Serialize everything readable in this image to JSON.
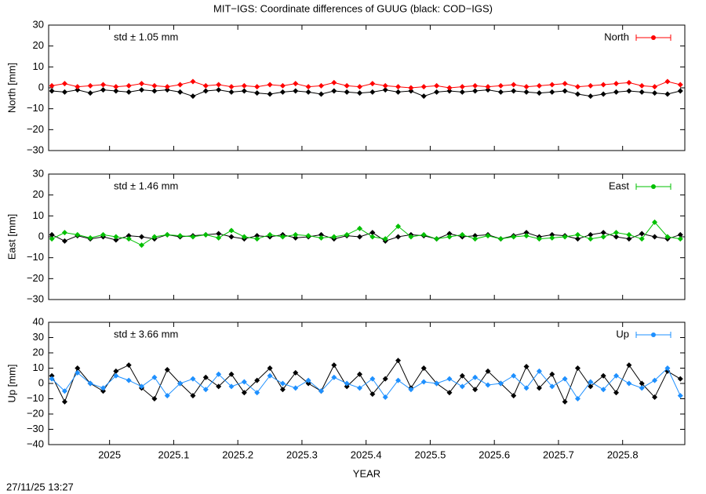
{
  "title": "MIT−IGS: Coordinate differences of GUUG (black: COD−IGS)",
  "timestamp": "27/11/25 13:27",
  "chart_data": [
    {
      "type": "line",
      "ylabel": "North [mm]",
      "annotation": "std ± 1.05 mm",
      "x": [
        2024.91,
        2024.93,
        2024.95,
        2024.97,
        2024.99,
        2025.01,
        2025.03,
        2025.05,
        2025.07,
        2025.09,
        2025.11,
        2025.13,
        2025.15,
        2025.17,
        2025.19,
        2025.21,
        2025.23,
        2025.25,
        2025.27,
        2025.29,
        2025.31,
        2025.33,
        2025.35,
        2025.37,
        2025.39,
        2025.41,
        2025.43,
        2025.45,
        2025.47,
        2025.49,
        2025.51,
        2025.53,
        2025.55,
        2025.57,
        2025.59,
        2025.61,
        2025.63,
        2025.65,
        2025.67,
        2025.69,
        2025.71,
        2025.73,
        2025.75,
        2025.77,
        2025.79,
        2025.81,
        2025.83,
        2025.85,
        2025.87,
        2025.89
      ],
      "xlim": [
        2024.905,
        2025.897
      ],
      "xticks": [
        2025,
        2025.1,
        2025.2,
        2025.3,
        2025.4,
        2025.5,
        2025.6,
        2025.7,
        2025.8
      ],
      "ylim": [
        -30,
        30
      ],
      "yticks": [
        {
          "value": -30,
          "label": "−30"
        },
        {
          "value": -20,
          "label": "−20"
        },
        {
          "value": -10,
          "label": "−10"
        },
        0,
        10,
        20,
        30
      ],
      "series": [
        {
          "color": "#000000",
          "values": [
            -1.5,
            -2,
            -1,
            -2.5,
            -1,
            -1.5,
            -2,
            -1,
            -1.5,
            -1,
            -2,
            -4,
            -1.5,
            -1,
            -2,
            -1.5,
            -2.5,
            -3,
            -2,
            -1.5,
            -2,
            -3,
            -1.5,
            -2,
            -2.5,
            -2,
            -1,
            -2,
            -1.5,
            -4,
            -2,
            -1.5,
            -2,
            -1.5,
            -1,
            -2,
            -1.5,
            -2,
            -2.5,
            -2,
            -1.5,
            -3,
            -4,
            -3,
            -2,
            -1.5,
            -2,
            -2.5,
            -3,
            -1.5
          ]
        },
        {
          "name": "North",
          "color": "#ff0000",
          "values": [
            1,
            2,
            0.5,
            1,
            1.5,
            0.5,
            1,
            2,
            1,
            0.5,
            1.5,
            3,
            1,
            1.5,
            0.5,
            1,
            0.5,
            1.5,
            1,
            2,
            0.5,
            1,
            2.5,
            1,
            0.5,
            2,
            1,
            0.5,
            0,
            0.5,
            1,
            0,
            0.5,
            1,
            0.5,
            1,
            1.5,
            0.5,
            1,
            1.5,
            2,
            0.5,
            1,
            1.5,
            2,
            2.5,
            1,
            0.5,
            3,
            1.5
          ]
        }
      ]
    },
    {
      "type": "line",
      "ylabel": "East [mm]",
      "annotation": "std ± 1.46 mm",
      "x": [
        2024.91,
        2024.93,
        2024.95,
        2024.97,
        2024.99,
        2025.01,
        2025.03,
        2025.05,
        2025.07,
        2025.09,
        2025.11,
        2025.13,
        2025.15,
        2025.17,
        2025.19,
        2025.21,
        2025.23,
        2025.25,
        2025.27,
        2025.29,
        2025.31,
        2025.33,
        2025.35,
        2025.37,
        2025.39,
        2025.41,
        2025.43,
        2025.45,
        2025.47,
        2025.49,
        2025.51,
        2025.53,
        2025.55,
        2025.57,
        2025.59,
        2025.61,
        2025.63,
        2025.65,
        2025.67,
        2025.69,
        2025.71,
        2025.73,
        2025.75,
        2025.77,
        2025.79,
        2025.81,
        2025.83,
        2025.85,
        2025.87,
        2025.89
      ],
      "xlim": [
        2024.905,
        2025.897
      ],
      "xticks": [
        2025,
        2025.1,
        2025.2,
        2025.3,
        2025.4,
        2025.5,
        2025.6,
        2025.7,
        2025.8
      ],
      "ylim": [
        -30,
        30
      ],
      "yticks": [
        {
          "value": -30,
          "label": "−30"
        },
        {
          "value": -20,
          "label": "−20"
        },
        {
          "value": -10,
          "label": "−10"
        },
        0,
        10,
        20,
        30
      ],
      "series": [
        {
          "color": "#000000",
          "values": [
            1,
            -2,
            0.5,
            -1,
            0,
            -1.5,
            0.5,
            0,
            -1,
            1,
            0,
            0.5,
            1,
            1.5,
            0,
            -1,
            0.5,
            0,
            1,
            -0.5,
            0,
            1,
            -1,
            0.5,
            0,
            2,
            -2,
            0,
            1,
            0.5,
            -1,
            1.5,
            0,
            0.5,
            1,
            -1,
            0.5,
            2,
            0,
            1,
            0.5,
            -1,
            1,
            2,
            0,
            -1,
            1.5,
            0,
            -1,
            1
          ]
        },
        {
          "name": "East",
          "color": "#00c000",
          "values": [
            -1,
            2,
            1,
            -0.5,
            1,
            0,
            -1,
            -4,
            0,
            1,
            0.5,
            0,
            1,
            -0.5,
            3,
            0,
            -1,
            1,
            0,
            1,
            0.5,
            -0.5,
            0,
            1,
            4,
            0,
            -1,
            5,
            0,
            1,
            -1,
            0,
            1,
            -1,
            0.5,
            -1,
            0,
            0.5,
            -1,
            -0.5,
            0,
            1,
            -1,
            0,
            2,
            1,
            -1,
            7,
            0,
            -1
          ]
        }
      ]
    },
    {
      "type": "line",
      "ylabel": "Up [mm]",
      "xlabel": "YEAR",
      "annotation": "std ± 3.66 mm",
      "x": [
        2024.91,
        2024.93,
        2024.95,
        2024.97,
        2024.99,
        2025.01,
        2025.03,
        2025.05,
        2025.07,
        2025.09,
        2025.11,
        2025.13,
        2025.15,
        2025.17,
        2025.19,
        2025.21,
        2025.23,
        2025.25,
        2025.27,
        2025.29,
        2025.31,
        2025.33,
        2025.35,
        2025.37,
        2025.39,
        2025.41,
        2025.43,
        2025.45,
        2025.47,
        2025.49,
        2025.51,
        2025.53,
        2025.55,
        2025.57,
        2025.59,
        2025.61,
        2025.63,
        2025.65,
        2025.67,
        2025.69,
        2025.71,
        2025.73,
        2025.75,
        2025.77,
        2025.79,
        2025.81,
        2025.83,
        2025.85,
        2025.87,
        2025.89
      ],
      "xlim": [
        2024.905,
        2025.897
      ],
      "xticks": [
        2025,
        2025.1,
        2025.2,
        2025.3,
        2025.4,
        2025.5,
        2025.6,
        2025.7,
        2025.8
      ],
      "ylim": [
        -40,
        40
      ],
      "yticks": [
        {
          "value": -40,
          "label": "−40"
        },
        {
          "value": -30,
          "label": "−30"
        },
        {
          "value": -20,
          "label": "−20"
        },
        {
          "value": -10,
          "label": "−10"
        },
        0,
        10,
        20,
        30,
        40
      ],
      "series": [
        {
          "color": "#000000",
          "values": [
            5,
            -12,
            10,
            0,
            -5,
            8,
            12,
            -3,
            -10,
            9,
            0,
            -8,
            4,
            -2,
            6,
            -6,
            2,
            10,
            -4,
            7,
            0,
            -5,
            12,
            -2,
            6,
            -7,
            3,
            15,
            -3,
            10,
            0,
            -6,
            5,
            -4,
            8,
            0,
            -8,
            11,
            -3,
            6,
            -12,
            10,
            -2,
            5,
            -6,
            12,
            0,
            -9,
            8,
            3
          ]
        },
        {
          "name": "Up",
          "color": "#1e90ff",
          "values": [
            3,
            -5,
            7,
            0,
            -3,
            5,
            2,
            -2,
            4,
            -8,
            0,
            3,
            -4,
            6,
            -2,
            1,
            -6,
            5,
            0,
            -3,
            2,
            -5,
            4,
            0,
            -3,
            3,
            -9,
            2,
            -4,
            1,
            0,
            3,
            -2,
            4,
            -1,
            0,
            5,
            -3,
            8,
            -2,
            3,
            -10,
            1,
            -4,
            5,
            0,
            -3,
            2,
            10,
            -8
          ]
        }
      ]
    }
  ]
}
